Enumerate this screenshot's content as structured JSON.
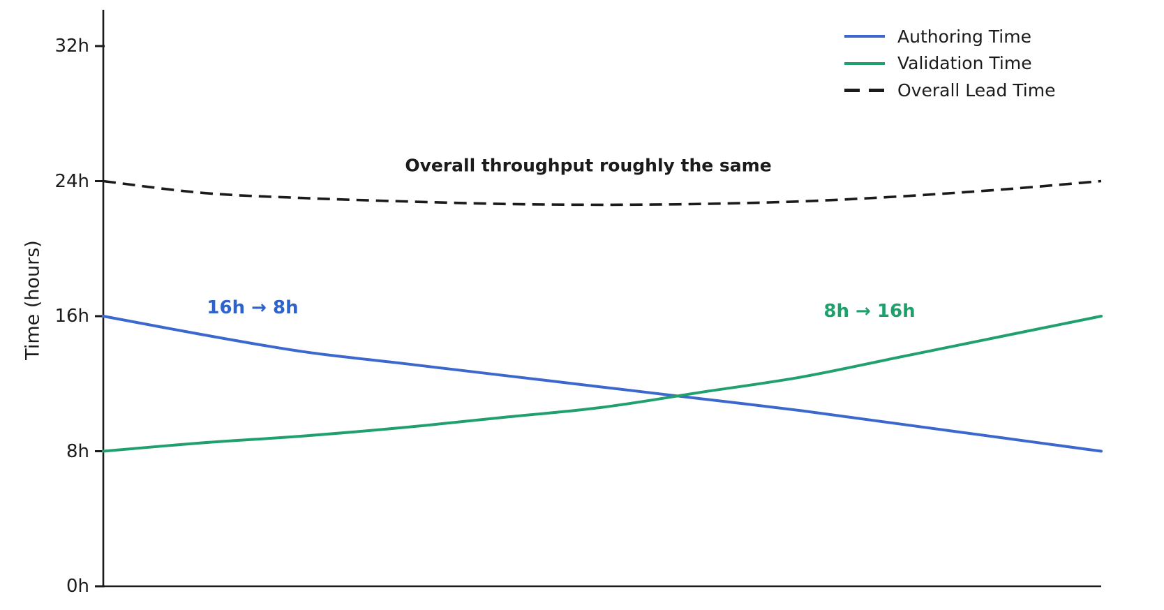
{
  "chart_data": {
    "type": "line",
    "ylabel": "Time (hours)",
    "ytick_labels": [
      "0h",
      "8h",
      "16h",
      "24h",
      "32h"
    ],
    "ytick_values": [
      0,
      8,
      16,
      24,
      32
    ],
    "ylim": [
      0,
      34.2
    ],
    "xlim": [
      0,
      1
    ],
    "x_axis_labels": "none",
    "grid": false,
    "legend_position": "upper right",
    "x": [
      0,
      0.1,
      0.2,
      0.3,
      0.4,
      0.5,
      0.6,
      0.7,
      0.8,
      0.9,
      1.0
    ],
    "series": [
      {
        "name": "Authoring Time",
        "color": "#3c67cd",
        "style": "solid",
        "start_value_hours": 16,
        "end_value_hours": 8,
        "values": [
          16.0,
          14.9,
          13.9,
          13.2,
          12.5,
          11.8,
          11.1,
          10.4,
          9.6,
          8.8,
          8.0
        ]
      },
      {
        "name": "Validation Time",
        "color": "#20a06e",
        "style": "solid",
        "start_value_hours": 8,
        "end_value_hours": 16,
        "values": [
          8.0,
          8.5,
          8.9,
          9.4,
          10.0,
          10.6,
          11.5,
          12.4,
          13.6,
          14.8,
          16.0
        ]
      },
      {
        "name": "Overall Lead Time",
        "color": "#1b1b1b",
        "style": "dashed",
        "start_value_hours": 24,
        "end_value_hours": 24,
        "values": [
          24.0,
          23.3,
          23.0,
          22.8,
          22.65,
          22.6,
          22.65,
          22.8,
          23.1,
          23.5,
          24.0
        ]
      }
    ],
    "annotations": [
      {
        "text": "16h → 8h",
        "color": "#2e62cc"
      },
      {
        "text": "8h → 16h",
        "color": "#1da06b"
      },
      {
        "text": "Overall throughput roughly the same",
        "color": "#1b1b1b"
      }
    ]
  },
  "axis": {
    "color": "#1b1b1b"
  }
}
